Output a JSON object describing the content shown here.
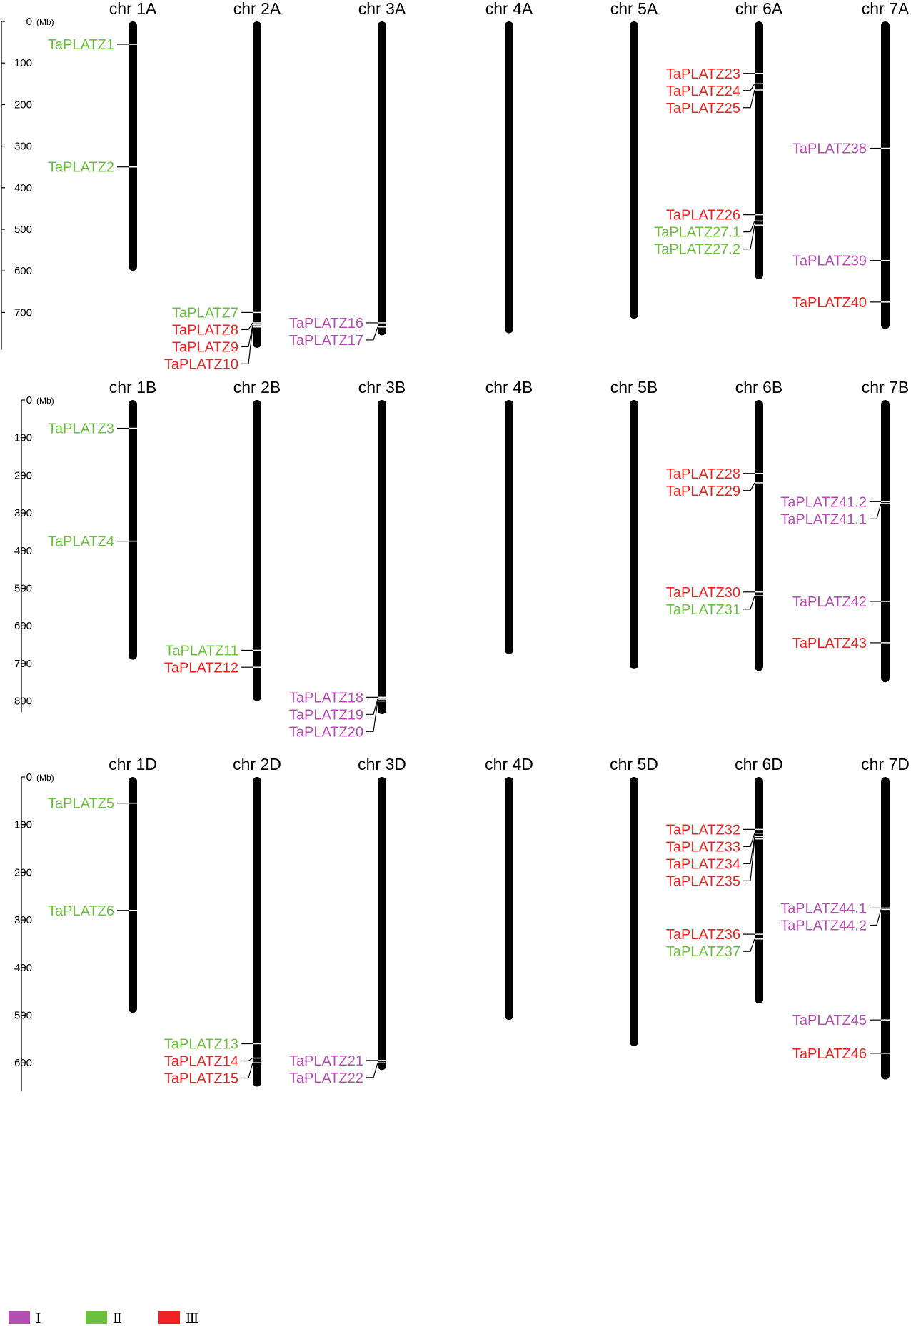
{
  "colors": {
    "class_I": "#b34fb0",
    "class_II": "#6cbf3f",
    "class_III": "#ee2222",
    "chromosome": "#000000"
  },
  "legend": [
    {
      "label": "Ⅰ",
      "class": "I"
    },
    {
      "label": "Ⅱ",
      "class": "II"
    },
    {
      "label": "Ⅲ",
      "class": "III"
    }
  ],
  "panels": [
    {
      "id": "A",
      "scale_ticks": [
        0,
        100,
        200,
        300,
        400,
        500,
        600,
        700
      ],
      "scale_unit": "(Mb)",
      "scale_max": 790,
      "chromosomes": [
        {
          "name": "chr 1A",
          "length": 600,
          "genes": [
            {
              "name": "TaPLATZ1",
              "pos": 55,
              "class": "II"
            },
            {
              "name": "TaPLATZ2",
              "pos": 350,
              "class": "II"
            }
          ]
        },
        {
          "name": "chr 2A",
          "length": 785,
          "genes": [
            {
              "name": "TaPLATZ7",
              "pos": 700,
              "class": "II"
            },
            {
              "name": "TaPLATZ8",
              "pos": 725,
              "class": "III"
            },
            {
              "name": "TaPLATZ9",
              "pos": 730,
              "class": "III"
            },
            {
              "name": "TaPLATZ10",
              "pos": 735,
              "class": "III"
            }
          ]
        },
        {
          "name": "chr 3A",
          "length": 755,
          "genes": [
            {
              "name": "TaPLATZ16",
              "pos": 725,
              "class": "I"
            },
            {
              "name": "TaPLATZ17",
              "pos": 735,
              "class": "I"
            }
          ]
        },
        {
          "name": "chr 4A",
          "length": 750,
          "genes": []
        },
        {
          "name": "chr 5A",
          "length": 715,
          "genes": []
        },
        {
          "name": "chr 6A",
          "length": 620,
          "genes": [
            {
              "name": "TaPLATZ23",
              "pos": 125,
              "class": "III"
            },
            {
              "name": "TaPLATZ24",
              "pos": 150,
              "class": "III"
            },
            {
              "name": "TaPLATZ25",
              "pos": 165,
              "class": "III"
            },
            {
              "name": "TaPLATZ26",
              "pos": 465,
              "class": "III"
            },
            {
              "name": "TaPLATZ27.1",
              "pos": 480,
              "class": "II"
            },
            {
              "name": "TaPLATZ27.2",
              "pos": 490,
              "class": "II"
            }
          ]
        },
        {
          "name": "chr 7A",
          "length": 740,
          "genes": [
            {
              "name": "TaPLATZ38",
              "pos": 305,
              "class": "I"
            },
            {
              "name": "TaPLATZ39",
              "pos": 575,
              "class": "I"
            },
            {
              "name": "TaPLATZ40",
              "pos": 675,
              "class": "III"
            }
          ]
        }
      ]
    },
    {
      "id": "B",
      "scale_ticks": [
        0,
        100,
        200,
        300,
        400,
        500,
        600,
        700,
        800
      ],
      "scale_unit": "(Mb)",
      "scale_max": 830,
      "chromosomes": [
        {
          "name": "chr 1B",
          "length": 690,
          "genes": [
            {
              "name": "TaPLATZ3",
              "pos": 75,
              "class": "II"
            },
            {
              "name": "TaPLATZ4",
              "pos": 375,
              "class": "II"
            }
          ]
        },
        {
          "name": "chr 2B",
          "length": 800,
          "genes": [
            {
              "name": "TaPLATZ11",
              "pos": 665,
              "class": "II"
            },
            {
              "name": "TaPLATZ12",
              "pos": 710,
              "class": "III"
            }
          ]
        },
        {
          "name": "chr 3B",
          "length": 835,
          "genes": [
            {
              "name": "TaPLATZ18",
              "pos": 790,
              "class": "I"
            },
            {
              "name": "TaPLATZ19",
              "pos": 795,
              "class": "I"
            },
            {
              "name": "TaPLATZ20",
              "pos": 800,
              "class": "I"
            }
          ]
        },
        {
          "name": "chr 4B",
          "length": 675,
          "genes": []
        },
        {
          "name": "chr 5B",
          "length": 715,
          "genes": []
        },
        {
          "name": "chr 6B",
          "length": 720,
          "genes": [
            {
              "name": "TaPLATZ28",
              "pos": 195,
              "class": "III"
            },
            {
              "name": "TaPLATZ29",
              "pos": 220,
              "class": "III"
            },
            {
              "name": "TaPLATZ30",
              "pos": 510,
              "class": "III"
            },
            {
              "name": "TaPLATZ31",
              "pos": 520,
              "class": "II"
            }
          ]
        },
        {
          "name": "chr 7B",
          "length": 750,
          "genes": [
            {
              "name": "TaPLATZ41.2",
              "pos": 270,
              "class": "I"
            },
            {
              "name": "TaPLATZ41.1",
              "pos": 275,
              "class": "I"
            },
            {
              "name": "TaPLATZ42",
              "pos": 535,
              "class": "I"
            },
            {
              "name": "TaPLATZ43",
              "pos": 645,
              "class": "III"
            }
          ]
        }
      ]
    },
    {
      "id": "D",
      "scale_ticks": [
        0,
        100,
        200,
        300,
        400,
        500,
        600
      ],
      "scale_unit": "(Mb)",
      "scale_max": 660,
      "chromosomes": [
        {
          "name": "chr 1D",
          "length": 495,
          "genes": [
            {
              "name": "TaPLATZ5",
              "pos": 55,
              "class": "II"
            },
            {
              "name": "TaPLATZ6",
              "pos": 280,
              "class": "II"
            }
          ]
        },
        {
          "name": "chr 2D",
          "length": 650,
          "genes": [
            {
              "name": "TaPLATZ13",
              "pos": 560,
              "class": "II"
            },
            {
              "name": "TaPLATZ14",
              "pos": 590,
              "class": "III"
            },
            {
              "name": "TaPLATZ15",
              "pos": 600,
              "class": "III"
            }
          ]
        },
        {
          "name": "chr 3D",
          "length": 615,
          "genes": [
            {
              "name": "TaPLATZ21",
              "pos": 595,
              "class": "I"
            },
            {
              "name": "TaPLATZ22",
              "pos": 600,
              "class": "I"
            }
          ]
        },
        {
          "name": "chr 4D",
          "length": 510,
          "genes": []
        },
        {
          "name": "chr 5D",
          "length": 565,
          "genes": []
        },
        {
          "name": "chr 6D",
          "length": 475,
          "genes": [
            {
              "name": "TaPLATZ32",
              "pos": 110,
              "class": "III"
            },
            {
              "name": "TaPLATZ33",
              "pos": 118,
              "class": "III"
            },
            {
              "name": "TaPLATZ34",
              "pos": 125,
              "class": "III"
            },
            {
              "name": "TaPLATZ35",
              "pos": 130,
              "class": "III"
            },
            {
              "name": "TaPLATZ36",
              "pos": 330,
              "class": "III"
            },
            {
              "name": "TaPLATZ37",
              "pos": 340,
              "class": "II"
            }
          ]
        },
        {
          "name": "chr 7D",
          "length": 635,
          "genes": [
            {
              "name": "TaPLATZ44.1",
              "pos": 275,
              "class": "I"
            },
            {
              "name": "TaPLATZ44.2",
              "pos": 278,
              "class": "I"
            },
            {
              "name": "TaPLATZ45",
              "pos": 510,
              "class": "I"
            },
            {
              "name": "TaPLATZ46",
              "pos": 580,
              "class": "III"
            }
          ]
        }
      ]
    }
  ]
}
